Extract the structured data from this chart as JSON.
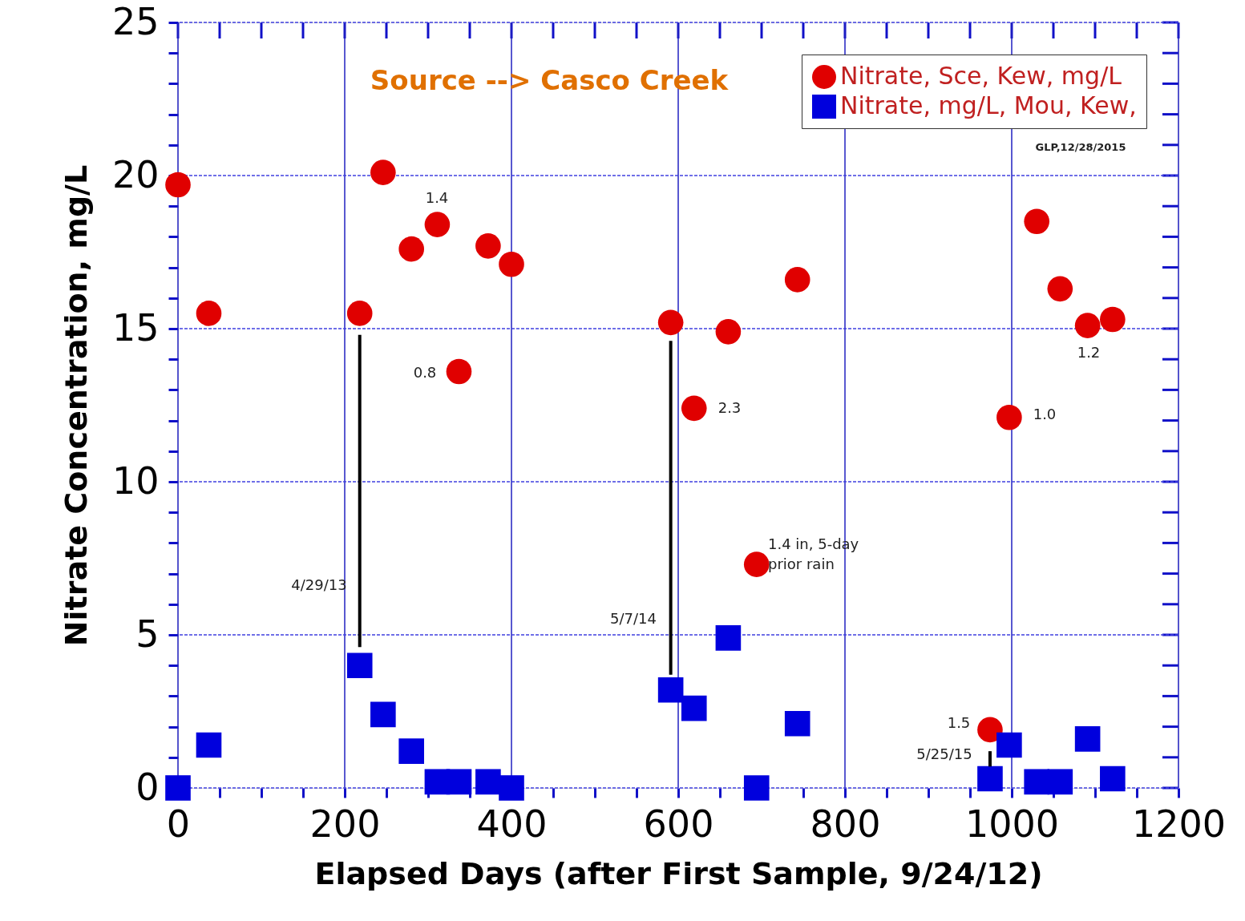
{
  "chart_data": {
    "type": "scatter",
    "xlabel": "Elapsed Days (after First Sample, 9/24/12)",
    "ylabel": "Nitrate Concentration, mg/L",
    "xlim": [
      0,
      1200
    ],
    "ylim": [
      0,
      25
    ],
    "xticks": [
      0,
      {
        "value": 50,
        "label": null
      },
      {
        "value": 100,
        "label": null
      },
      {
        "value": 150,
        "label": null
      },
      200,
      {
        "value": 250,
        "label": null
      },
      {
        "value": 300,
        "label": null
      },
      {
        "value": 350,
        "label": null
      },
      400,
      {
        "value": 450,
        "label": null
      },
      {
        "value": 500,
        "label": null
      },
      {
        "value": 550,
        "label": null
      },
      600,
      {
        "value": 650,
        "label": null
      },
      {
        "value": 700,
        "label": null
      },
      {
        "value": 750,
        "label": null
      },
      800,
      {
        "value": 850,
        "label": null
      },
      {
        "value": 900,
        "label": null
      },
      {
        "value": 950,
        "label": null
      },
      1000,
      {
        "value": 1050,
        "label": null
      },
      {
        "value": 1100,
        "label": null
      },
      {
        "value": 1150,
        "label": null
      },
      1200
    ],
    "yticks": [
      0,
      {
        "value": 1,
        "label": null
      },
      {
        "value": 2,
        "label": null
      },
      {
        "value": 3,
        "label": null
      },
      {
        "value": 4,
        "label": null
      },
      5,
      {
        "value": 6,
        "label": null
      },
      {
        "value": 7,
        "label": null
      },
      {
        "value": 8,
        "label": null
      },
      {
        "value": 9,
        "label": null
      },
      10,
      {
        "value": 11,
        "label": null
      },
      {
        "value": 12,
        "label": null
      },
      {
        "value": 13,
        "label": null
      },
      {
        "value": 14,
        "label": null
      },
      15,
      {
        "value": 16,
        "label": null
      },
      {
        "value": 17,
        "label": null
      },
      {
        "value": 18,
        "label": null
      },
      {
        "value": 19,
        "label": null
      },
      20,
      {
        "value": 21,
        "label": null
      },
      {
        "value": 22,
        "label": null
      },
      {
        "value": 23,
        "label": null
      },
      {
        "value": 24,
        "label": null
      },
      25
    ],
    "grid": true,
    "legend": "top right",
    "series": [
      {
        "name": "Nitrate, Sce, Kew, mg/L",
        "color": "#e00000",
        "marker": "circle",
        "x": [
          0,
          37,
          218,
          246,
          280,
          311,
          337,
          372,
          400,
          591,
          619,
          660,
          694,
          743,
          974,
          997,
          1030,
          1058,
          1091,
          1121
        ],
        "values": [
          19.7,
          15.5,
          15.5,
          20.1,
          17.6,
          18.4,
          13.6,
          17.7,
          17.1,
          15.2,
          12.4,
          14.9,
          7.3,
          16.6,
          1.9,
          12.1,
          18.5,
          16.3,
          15.1,
          15.3
        ]
      },
      {
        "name": "Nitrate, mg/L, Mou, Kew,",
        "color": "#0000dd",
        "marker": "square",
        "x": [
          0,
          37,
          218,
          246,
          280,
          311,
          337,
          372,
          400,
          591,
          619,
          660,
          694,
          743,
          974,
          997,
          1030,
          1058,
          1091,
          1121
        ],
        "values": [
          0.0,
          1.4,
          4.0,
          2.4,
          1.2,
          0.2,
          0.2,
          0.2,
          0.0,
          3.2,
          2.6,
          4.9,
          0.0,
          2.1,
          0.3,
          1.4,
          0.2,
          0.2,
          1.6,
          0.3
        ]
      },
      {
        "type": "line",
        "color": "#000000",
        "x": [
          218,
          218
        ],
        "values": [
          14.8,
          4.6
        ]
      },
      {
        "type": "line",
        "color": "#000000",
        "x": [
          591,
          591
        ],
        "values": [
          14.6,
          3.7
        ]
      },
      {
        "type": "line",
        "color": "#000000",
        "x": [
          974,
          974
        ],
        "values": [
          1.2,
          0.7
        ]
      }
    ],
    "annotations": [
      "Source --> Casco Creek",
      "GLP,12/28/2015",
      "1.4",
      "0.8",
      "2.3",
      "1.4 in, 5-day\nprior rain",
      "1.2",
      "1.0",
      "1.5",
      "4/29/13",
      "5/7/14",
      "5/25/15"
    ]
  }
}
